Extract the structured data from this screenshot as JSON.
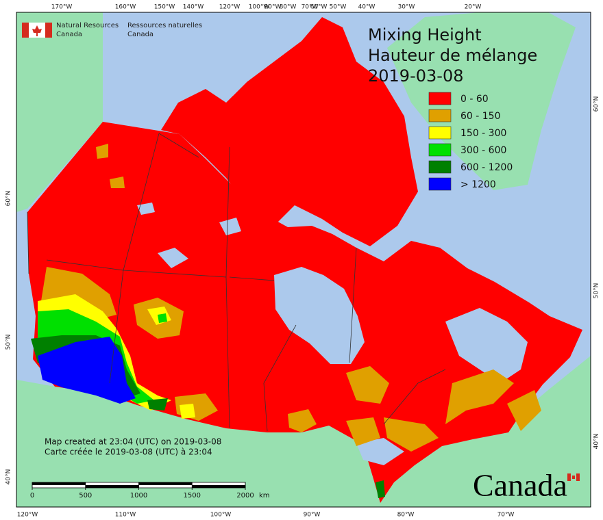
{
  "agency": {
    "en_line1": "Natural Resources",
    "en_line2": "Canada",
    "fr_line1": "Ressources naturelles",
    "fr_line2": "Canada"
  },
  "title": {
    "line1": "Mixing Height",
    "line2": "Hauteur de mélange",
    "date": "2019-03-08"
  },
  "legend": [
    {
      "label": "0 - 60",
      "color": "#ff0000"
    },
    {
      "label": "60 - 150",
      "color": "#e0a000"
    },
    {
      "label": "150 - 300",
      "color": "#ffff00"
    },
    {
      "label": "300 - 600",
      "color": "#00e000"
    },
    {
      "label": "600 - 1200",
      "color": "#008000"
    },
    {
      "label": "> 1200",
      "color": "#0000ff"
    }
  ],
  "graticule": {
    "top": [
      "170°W",
      "160°W",
      "150°W",
      "140°W",
      "120°W",
      "100°W",
      "90°W",
      "80°W",
      "70°W",
      "60°W",
      "50°W",
      "40°W",
      "30°W",
      "20°W"
    ],
    "bottom": [
      "120°W",
      "110°W",
      "100°W",
      "90°W",
      "80°W",
      "70°W"
    ],
    "left": [
      "60°N",
      "50°N",
      "40°N"
    ],
    "right": [
      "60°N",
      "50°N",
      "40°N"
    ]
  },
  "notes": [
    "Map created at 23:04 (UTC) on 2019-03-08",
    "Carte créée le 2019-03-08 (UTC) à 23:04"
  ],
  "scale_bar": {
    "ticks": [
      0,
      500,
      1000,
      1500,
      2000
    ],
    "unit": "km"
  },
  "wordmark": "Canada"
}
